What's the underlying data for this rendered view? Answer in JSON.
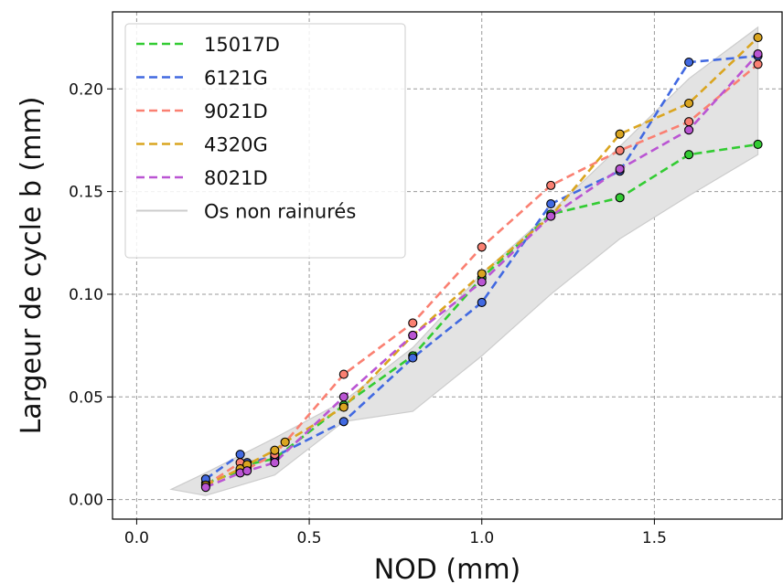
{
  "chart_data": {
    "type": "line",
    "title": "",
    "xlabel": "NOD (mm)",
    "ylabel": "Largeur de cycle b (mm)",
    "xlim": [
      -0.07,
      1.87
    ],
    "ylim": [
      -0.0095,
      0.2375
    ],
    "xticks": [
      0.0,
      0.5,
      1.0,
      1.5
    ],
    "xtick_labels": [
      "0.0",
      "0.5",
      "1.0",
      "1.5"
    ],
    "yticks": [
      0.0,
      0.05,
      0.1,
      0.15,
      0.2
    ],
    "ytick_labels": [
      "0.00",
      "0.05",
      "0.10",
      "0.15",
      "0.20"
    ],
    "grid": true,
    "legend_position": "top-left",
    "series": [
      {
        "name": "15017D",
        "color": "#33cc33",
        "x": [
          0.2,
          0.3,
          0.32,
          0.4,
          0.6,
          0.8,
          1.0,
          1.2,
          1.4,
          1.6,
          1.8
        ],
        "y": [
          0.008,
          0.014,
          0.017,
          0.02,
          0.046,
          0.07,
          0.108,
          0.139,
          0.147,
          0.168,
          0.173
        ]
      },
      {
        "name": "6121G",
        "color": "#4169e1",
        "x": [
          0.2,
          0.3,
          0.32,
          0.4,
          0.6,
          0.8,
          1.0,
          1.2,
          1.4,
          1.6,
          1.8
        ],
        "y": [
          0.01,
          0.022,
          0.018,
          0.021,
          0.038,
          0.069,
          0.096,
          0.144,
          0.16,
          0.213,
          0.216
        ]
      },
      {
        "name": "9021D",
        "color": "#fa8072",
        "x": [
          0.2,
          0.3,
          0.32,
          0.4,
          0.6,
          0.8,
          1.0,
          1.2,
          1.4,
          1.6,
          1.8
        ],
        "y": [
          0.007,
          0.018,
          0.015,
          0.022,
          0.061,
          0.086,
          0.123,
          0.153,
          0.17,
          0.184,
          0.212
        ]
      },
      {
        "name": "4320G",
        "color": "#daa520",
        "x": [
          0.2,
          0.3,
          0.32,
          0.4,
          0.43,
          0.6,
          0.8,
          1.0,
          1.2,
          1.4,
          1.6,
          1.8
        ],
        "y": [
          0.007,
          0.015,
          0.017,
          0.024,
          0.028,
          0.045,
          0.08,
          0.11,
          0.138,
          0.178,
          0.193,
          0.225
        ]
      },
      {
        "name": "8021D",
        "color": "#ba55d3",
        "x": [
          0.2,
          0.3,
          0.32,
          0.4,
          0.6,
          0.8,
          1.0,
          1.2,
          1.4,
          1.6,
          1.8
        ],
        "y": [
          0.006,
          0.013,
          0.014,
          0.018,
          0.05,
          0.08,
          0.106,
          0.138,
          0.161,
          0.18,
          0.217
        ]
      }
    ],
    "band": {
      "name": "Os non rainurés",
      "color": "#cccccc",
      "fill": "#e3e3e3",
      "x": [
        0.1,
        0.2,
        0.4,
        0.6,
        0.8,
        1.0,
        1.2,
        1.4,
        1.6,
        1.8
      ],
      "upper": [
        0.005,
        0.013,
        0.03,
        0.048,
        0.074,
        0.11,
        0.14,
        0.172,
        0.205,
        0.23
      ],
      "lower": [
        0.005,
        0.002,
        0.012,
        0.038,
        0.043,
        0.07,
        0.1,
        0.127,
        0.148,
        0.168
      ]
    }
  }
}
